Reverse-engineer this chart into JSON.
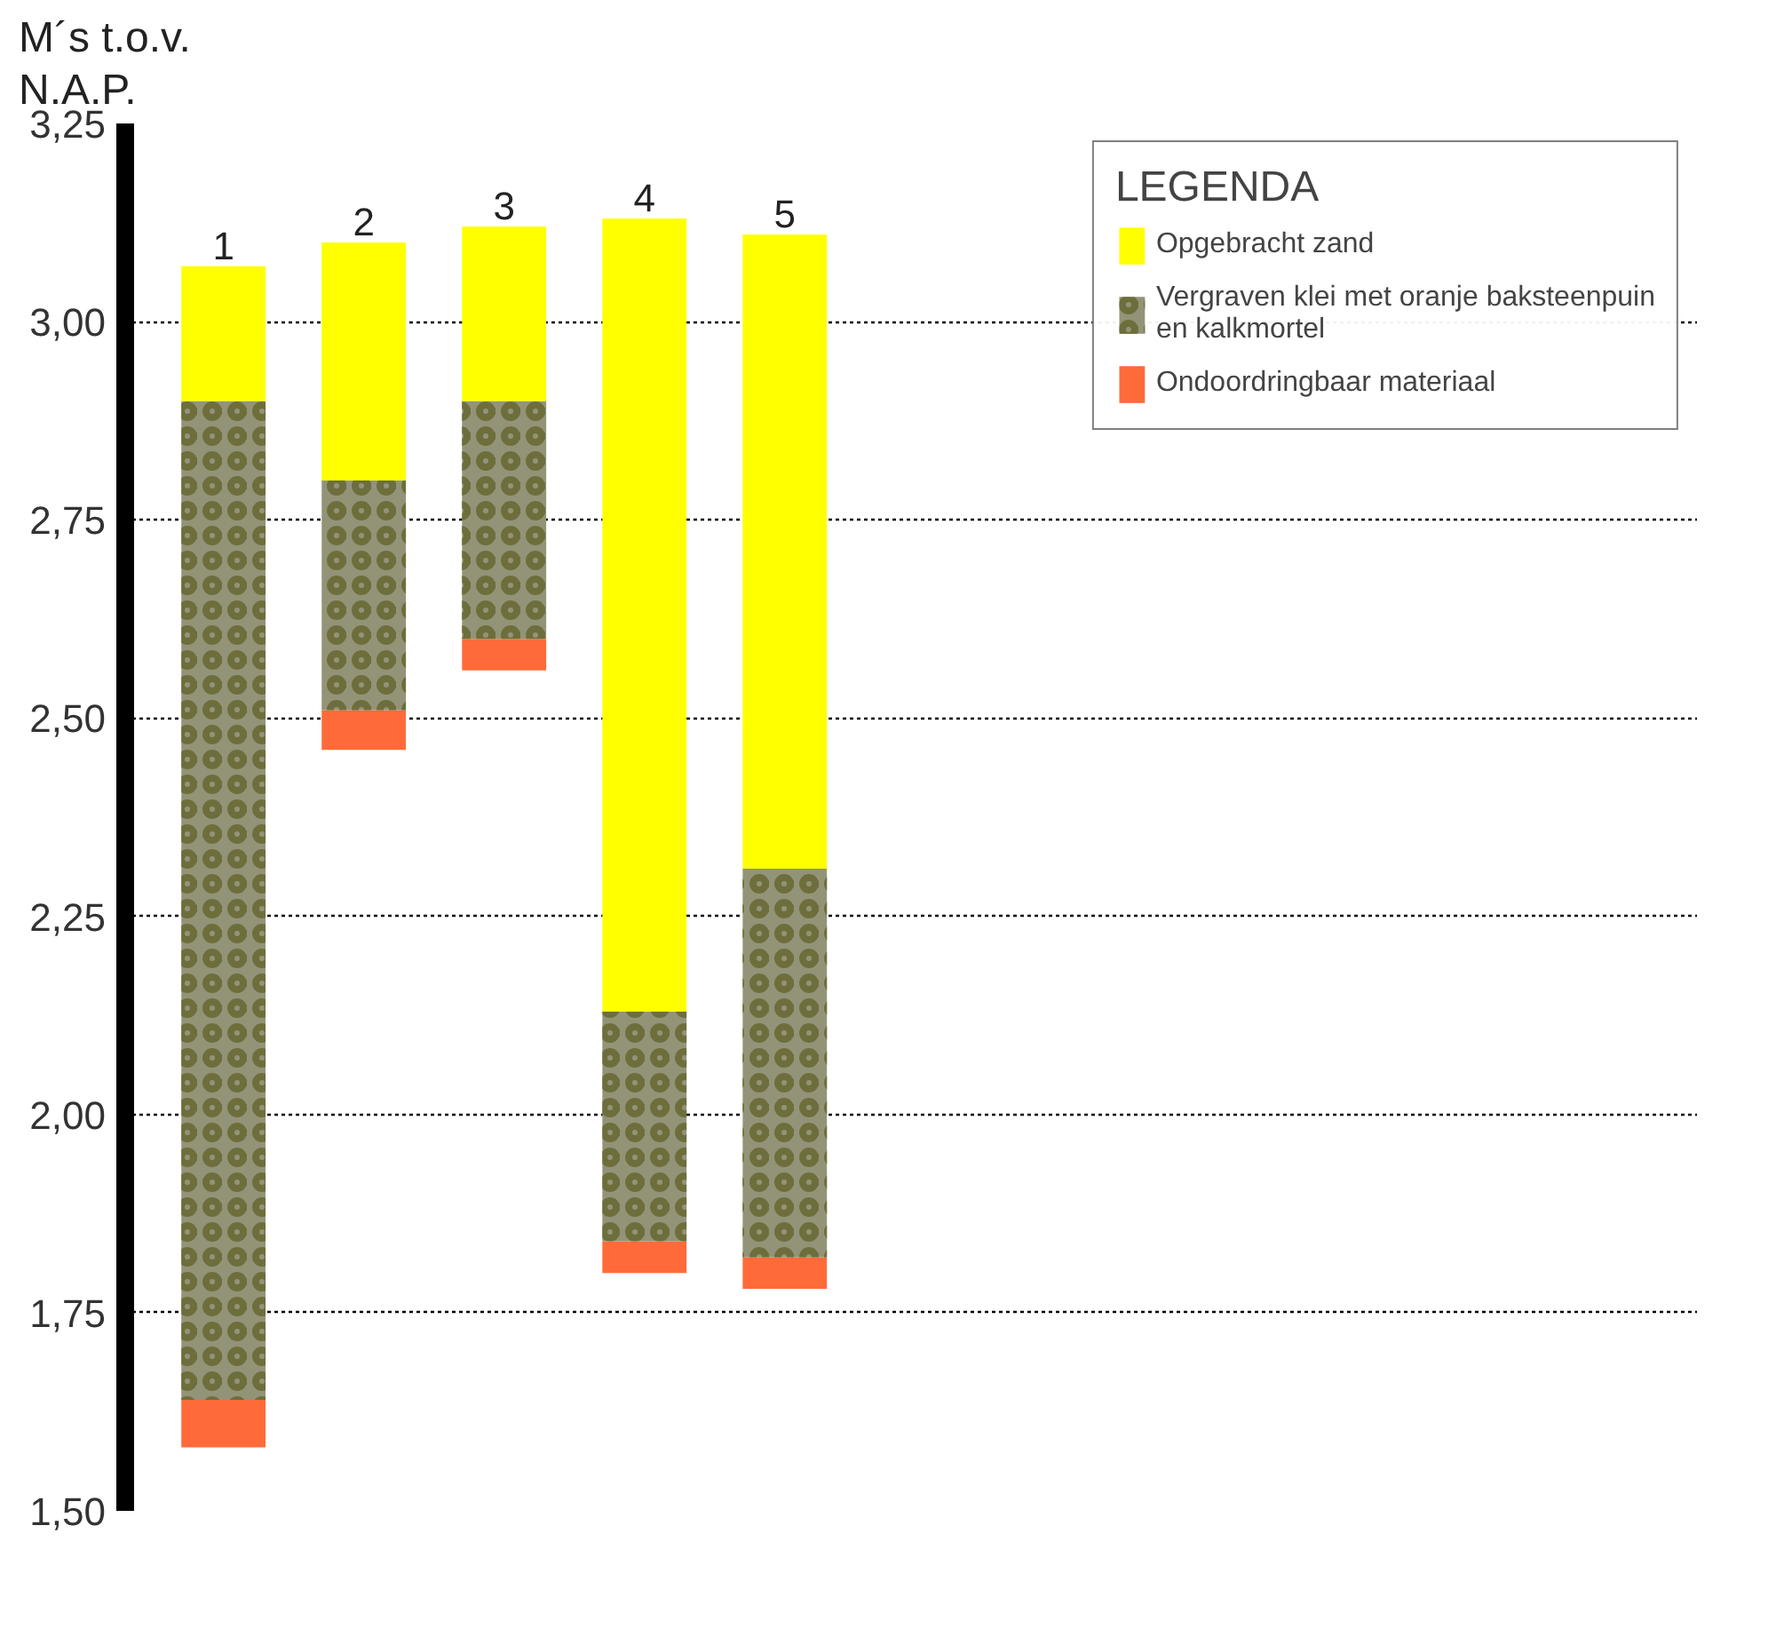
{
  "chart_data": {
    "type": "bar",
    "ylabel": "M´s t.o.v. N.A.P.",
    "legend_title": "LEGENDA",
    "categories": [
      "1",
      "2",
      "3",
      "4",
      "5"
    ],
    "series": [
      {
        "name": "Ondoordringbaar materiaal",
        "color": "#ff6a39",
        "base": [
          1.58,
          2.46,
          2.56,
          1.8,
          1.78
        ],
        "values": [
          0.06,
          0.05,
          0.04,
          0.04,
          0.04
        ]
      },
      {
        "name": "Vergraven klei met oranje baksteenpuin en kalkmortel",
        "color": "#939378",
        "base": [
          1.64,
          2.51,
          2.6,
          1.84,
          1.82
        ],
        "values": [
          1.26,
          0.29,
          0.3,
          0.29,
          0.49
        ]
      },
      {
        "name": "Opgebracht zand",
        "color": "#ffff00",
        "base": [
          2.9,
          2.8,
          2.9,
          2.13,
          2.31
        ],
        "values": [
          0.17,
          0.3,
          0.22,
          1.0,
          0.8
        ]
      }
    ],
    "ylim": [
      1.5,
      3.25
    ],
    "yticks": [
      {
        "value": 1.5,
        "label": "1,50"
      },
      {
        "value": 1.75,
        "label": "1,75"
      },
      {
        "value": 2.0,
        "label": "2,00"
      },
      {
        "value": 2.25,
        "label": "2,25"
      },
      {
        "value": 2.5,
        "label": "2,50"
      },
      {
        "value": 2.75,
        "label": "2,75"
      },
      {
        "value": 3.0,
        "label": "3,00"
      },
      {
        "value": 3.25,
        "label": "3,25"
      }
    ],
    "grid": "y",
    "legend": "top right"
  }
}
